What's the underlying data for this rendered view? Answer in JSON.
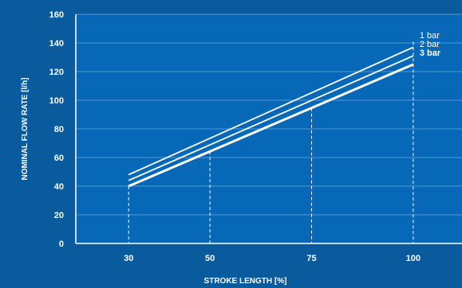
{
  "chart_data": {
    "type": "line",
    "title": "",
    "xlabel": "STROKE LENGTH [%]",
    "ylabel": "NOMINAL FLOW RATE [l/h]",
    "x_ticks": [
      30,
      50,
      75,
      100
    ],
    "y_ticks": [
      0,
      20,
      40,
      60,
      80,
      100,
      120,
      140,
      160
    ],
    "xlim": [
      17,
      112
    ],
    "ylim": [
      0,
      160
    ],
    "grid": true,
    "reference_lines_x": [
      30,
      50,
      75,
      100
    ],
    "series": [
      {
        "name": "1 bar",
        "x": [
          30,
          100
        ],
        "y": [
          48,
          137
        ],
        "bold": false
      },
      {
        "name": "2 bar",
        "x": [
          30,
          100
        ],
        "y": [
          44,
          131
        ],
        "bold": false
      },
      {
        "name": "3 bar",
        "x": [
          30,
          100
        ],
        "y": [
          40,
          125
        ],
        "bold": true
      }
    ],
    "colors": {
      "background": "#0a5a9e",
      "plot_background": "#0868b8",
      "grid": "#4f95d2",
      "line": "#ffffff"
    }
  }
}
